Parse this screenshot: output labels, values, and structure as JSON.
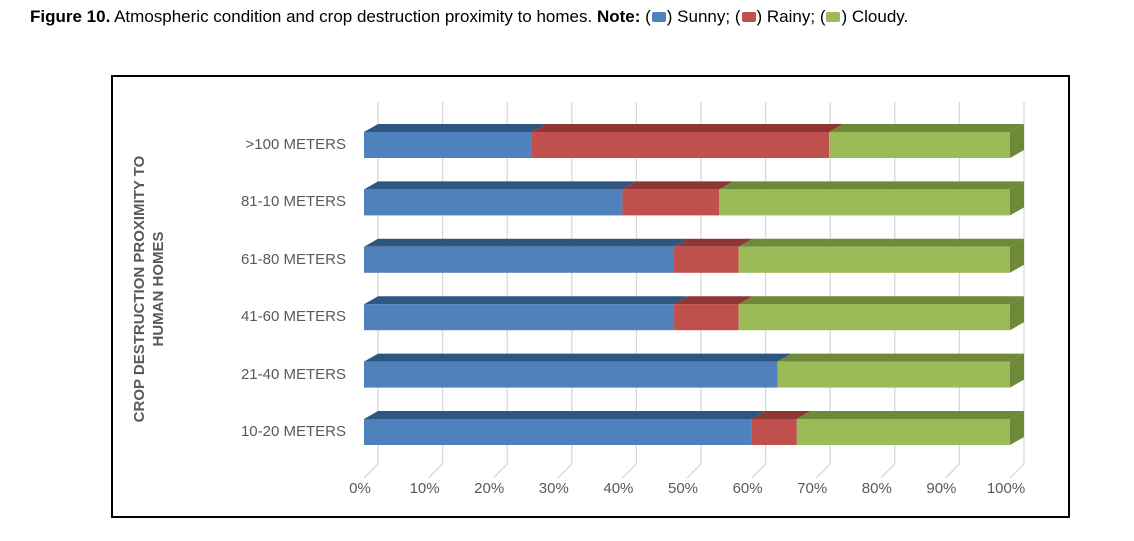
{
  "caption": {
    "figure_label": "Figure 10.",
    "text": " Atmospheric condition and crop destruction proximity to homes. ",
    "note_label": "Note:",
    "legend": [
      {
        "label": "Sunny",
        "color": "#4F81BD",
        "sep": "; "
      },
      {
        "label": "Rainy",
        "color": "#C0504D",
        "sep": "; "
      },
      {
        "label": "Cloudy",
        "color": "#9BBB59",
        "sep": "."
      }
    ]
  },
  "chart_data": {
    "type": "bar",
    "orientation": "horizontal",
    "stacked": true,
    "percent_stacked": true,
    "style": "3d-bevel",
    "title": "",
    "xlabel": "",
    "ylabel": "CROP DESTRUCTION PROXIMITY TO HUMAN HOMES",
    "ylabel_lines": [
      "CROP DESTRUCTION PROXIMITY TO",
      "HUMAN HOMES"
    ],
    "categories": [
      ">100 METERS",
      "81-10 METERS",
      "61-80 METERS",
      "41-60 METERS",
      "21-40 METERS",
      "10-20 METERS"
    ],
    "x_ticks": [
      "0%",
      "10%",
      "20%",
      "30%",
      "40%",
      "50%",
      "60%",
      "70%",
      "80%",
      "90%",
      "100%"
    ],
    "xlim": [
      0,
      100
    ],
    "grid": true,
    "gridline_color": "#d9d9d9",
    "axis_text_color": "#595959",
    "legend_position": "in-caption",
    "series": [
      {
        "name": "Sunny",
        "color": "#4F81BD",
        "color_dark": "#2F5680",
        "values": [
          26,
          40,
          48,
          48,
          64,
          60
        ]
      },
      {
        "name": "Rainy",
        "color": "#C0504D",
        "color_dark": "#8E3634",
        "values": [
          46,
          15,
          10,
          10,
          0,
          7
        ]
      },
      {
        "name": "Cloudy",
        "color": "#9BBB59",
        "color_dark": "#6E8A39",
        "values": [
          28,
          45,
          42,
          42,
          36,
          33
        ]
      }
    ]
  }
}
